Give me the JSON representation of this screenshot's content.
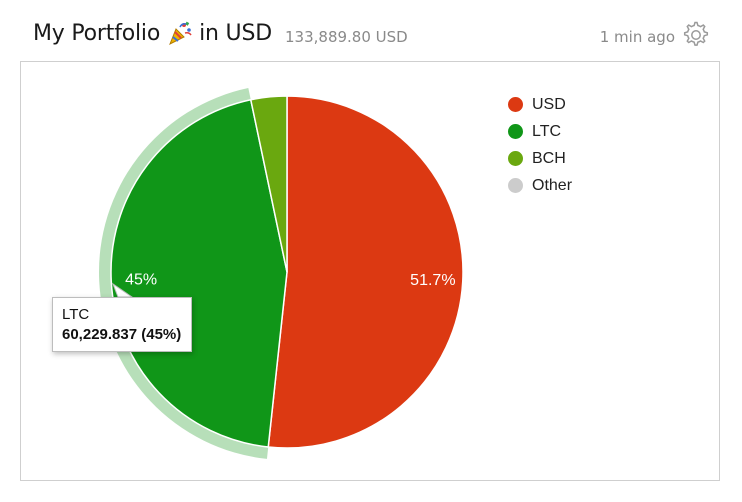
{
  "header": {
    "title_prefix": "My Portfolio",
    "title_suffix": "in USD",
    "title_icon": "party-popper-icon",
    "total": "133,889.80 USD",
    "updated": "1 min ago",
    "settings_icon": "gear-icon"
  },
  "chart_data": {
    "type": "pie",
    "title": "",
    "categories": [
      "USD",
      "LTC",
      "BCH",
      "Other"
    ],
    "values": [
      51.7,
      45.0,
      3.3,
      0.0
    ],
    "value_labels": [
      "51.7%",
      "45%",
      "",
      ""
    ],
    "colors": [
      "#dc3912",
      "#109618",
      "#6aa80f",
      "#cccccc"
    ],
    "legend_position": "right",
    "highlighted": "LTC",
    "tooltip": {
      "label": "LTC",
      "value": "60,229.837 (45%)"
    }
  }
}
